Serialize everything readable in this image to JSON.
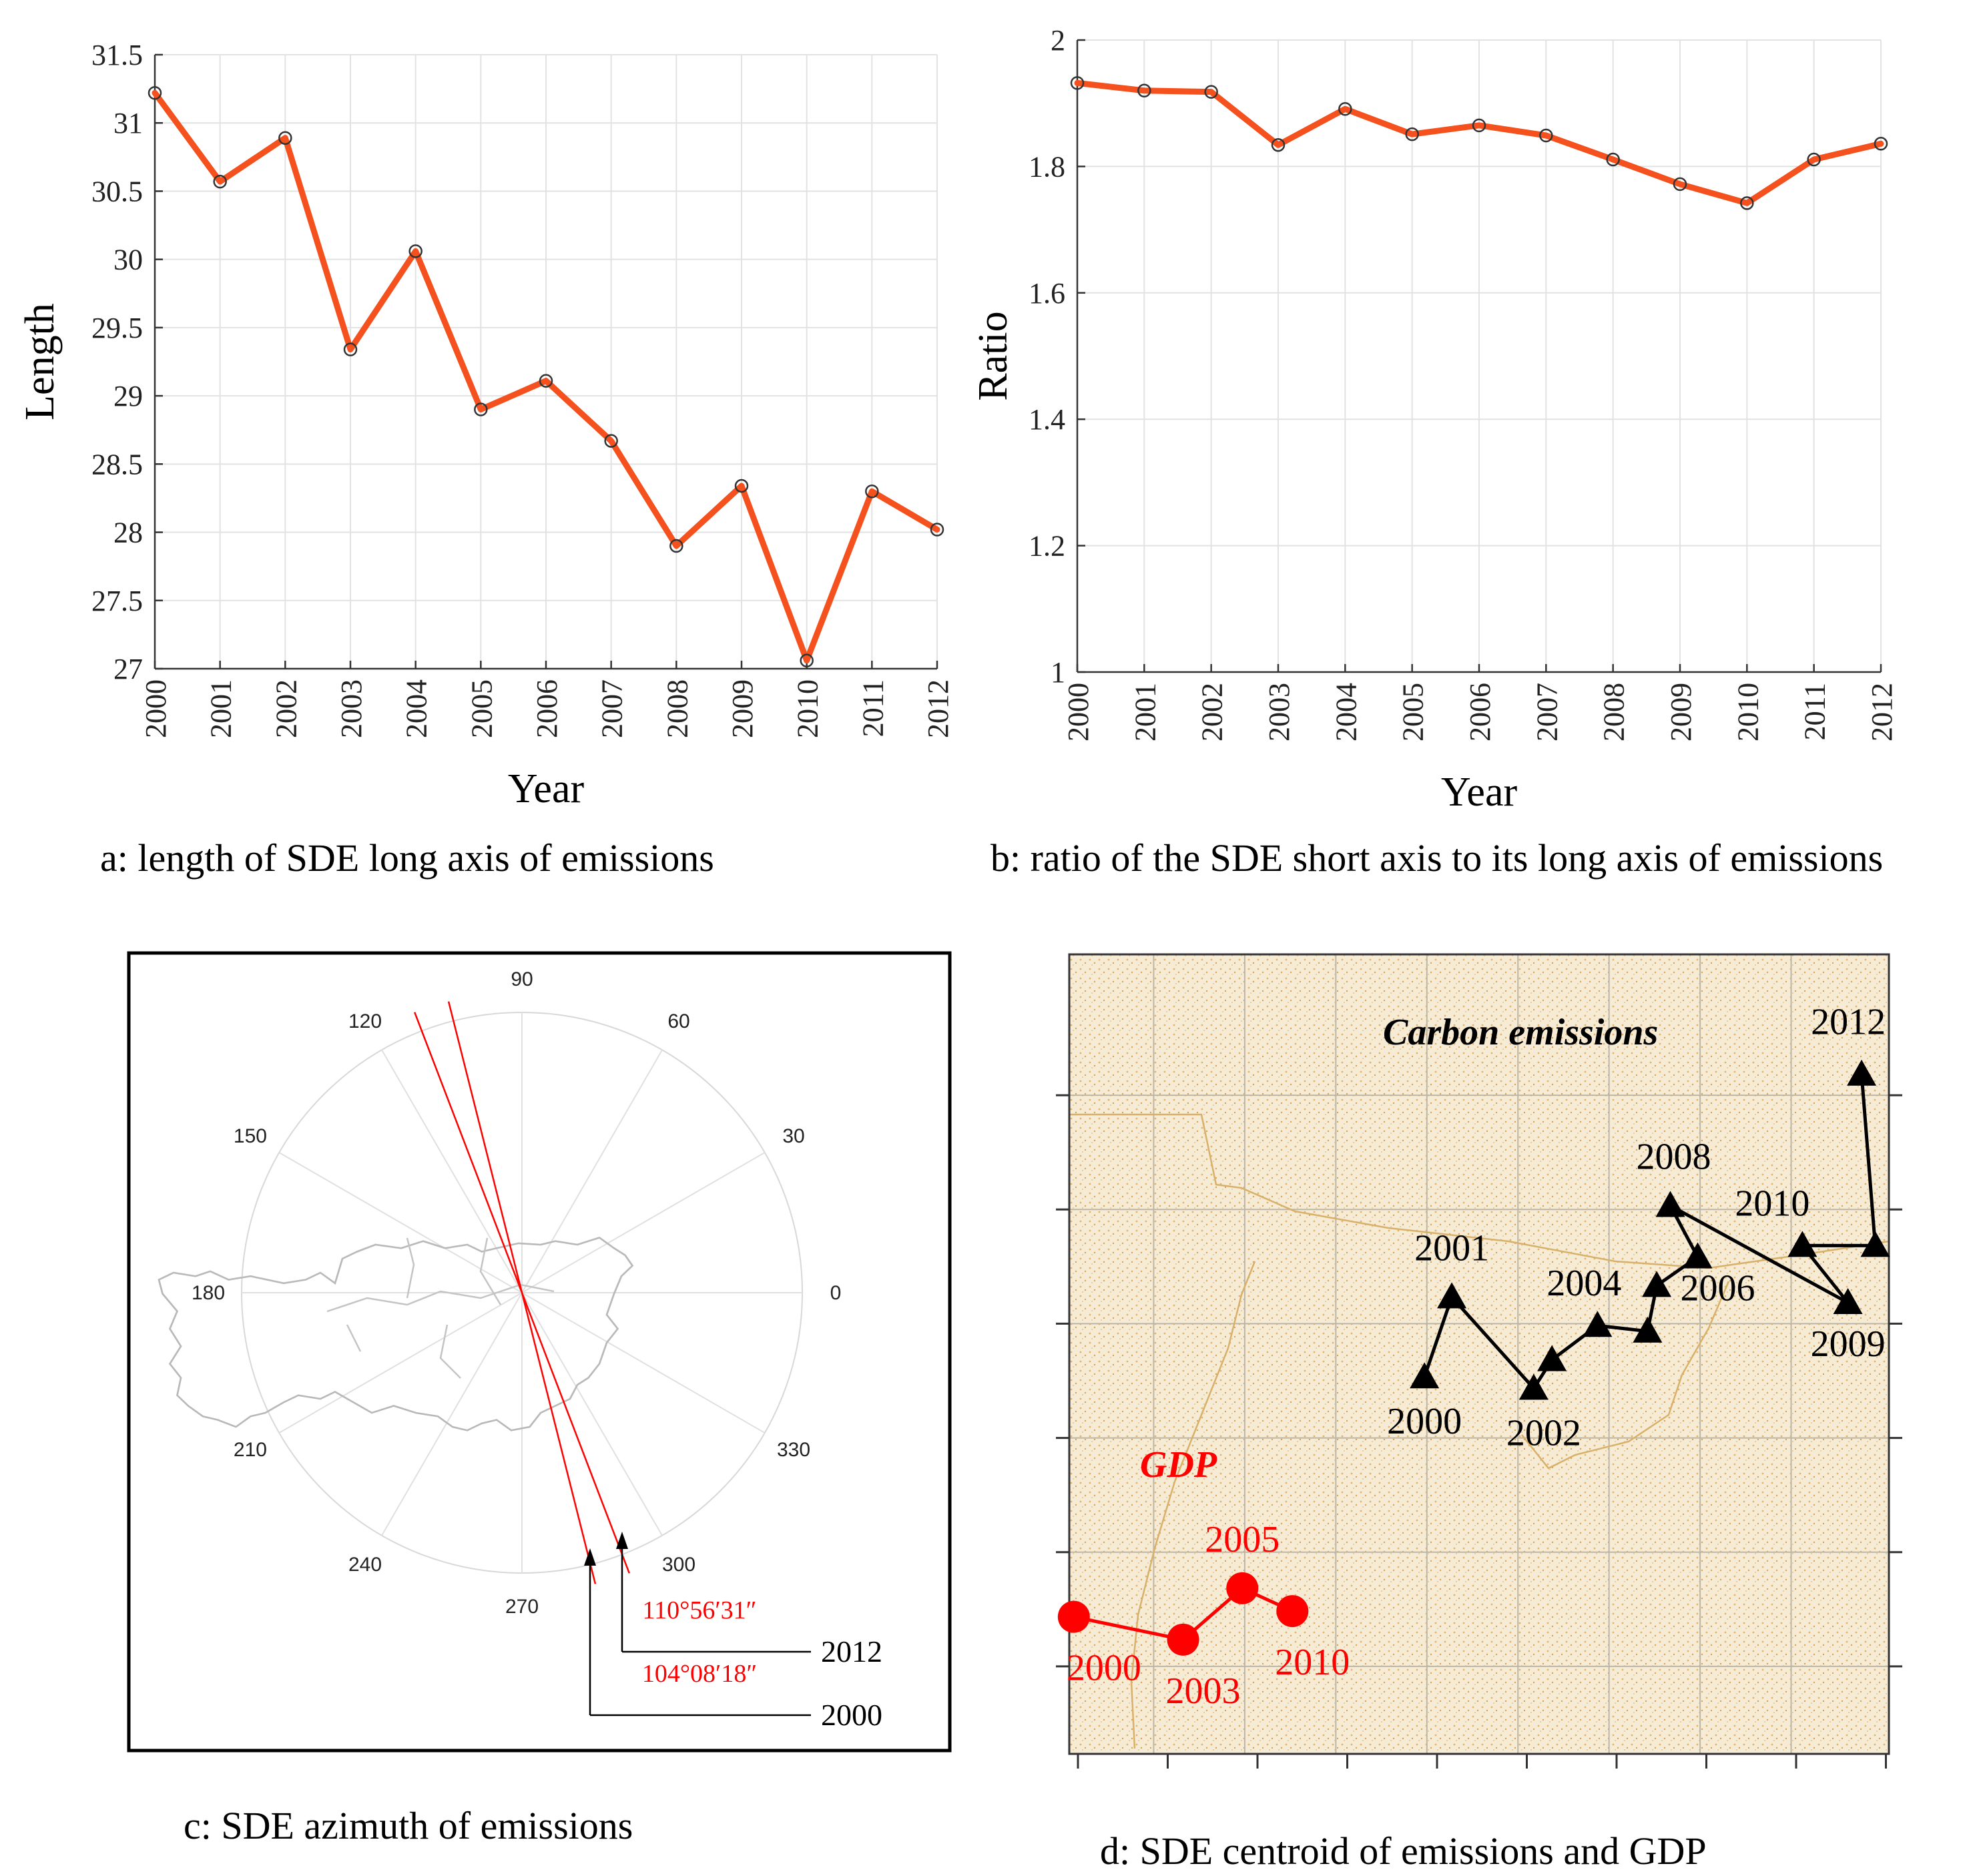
{
  "chart_data": [
    {
      "type": "line",
      "title": "",
      "caption": "a: length of SDE long axis of emissions",
      "xlabel": "Year",
      "ylabel": "Length",
      "categories": [
        "2000",
        "2001",
        "2002",
        "2003",
        "2004",
        "2005",
        "2006",
        "2007",
        "2008",
        "2009",
        "2010",
        "2011",
        "2012"
      ],
      "values": [
        31.22,
        30.57,
        30.89,
        29.34,
        30.06,
        28.9,
        29.11,
        28.67,
        27.9,
        28.34,
        27.06,
        28.3,
        28.02
      ],
      "ylim": [
        27,
        31.5
      ],
      "yticks": [
        "27",
        "27.5",
        "28",
        "28.5",
        "29",
        "29.5",
        "30",
        "30.5",
        "31",
        "31.5"
      ],
      "grid": true,
      "line_color": "#F4511E"
    },
    {
      "type": "line",
      "title": "",
      "caption": "b: ratio of the SDE short axis to its long axis of emissions",
      "xlabel": "Year",
      "ylabel": "Ratio",
      "categories": [
        "2000",
        "2001",
        "2002",
        "2003",
        "2004",
        "2005",
        "2006",
        "2007",
        "2008",
        "2009",
        "2010",
        "2011",
        "2012"
      ],
      "values": [
        1.932,
        1.92,
        1.918,
        1.834,
        1.891,
        1.851,
        1.865,
        1.849,
        1.811,
        1.772,
        1.742,
        1.811,
        1.836
      ],
      "ylim": [
        1,
        2
      ],
      "yticks": [
        "1",
        "1.2",
        "1.4",
        "1.6",
        "1.8",
        "2"
      ],
      "grid": true,
      "line_color": "#F4511E"
    },
    {
      "type": "polar",
      "caption": "c: SDE azimuth of emissions",
      "angle_labels": [
        "0",
        "30",
        "60",
        "90",
        "120",
        "150",
        "180",
        "210",
        "240",
        "270",
        "300",
        "330"
      ],
      "azimuth_lines": [
        {
          "year": "2012",
          "angle_label": "110°56′31″",
          "direction_deg": 110.94
        },
        {
          "year": "2000",
          "angle_label": "104°08′18″",
          "direction_deg": 104.14
        }
      ],
      "line_color": "#FF0000"
    },
    {
      "type": "scatter",
      "caption": "d: SDE centroid of emissions and GDP",
      "xlim": [
        0,
        9
      ],
      "ylim": [
        0,
        7
      ],
      "series": [
        {
          "name": "Carbon emissions",
          "color": "#000000",
          "marker": "triangle",
          "points": [
            {
              "label": "2000",
              "x": 3.9,
              "y": 3.3
            },
            {
              "label": "2001",
              "x": 4.2,
              "y": 4.0
            },
            {
              "label": "2002",
              "x": 5.1,
              "y": 3.2
            },
            {
              "label": "",
              "x": 5.3,
              "y": 3.45
            },
            {
              "label": "2004",
              "x": 5.8,
              "y": 3.75
            },
            {
              "label": "",
              "x": 6.35,
              "y": 3.7
            },
            {
              "label": "",
              "x": 6.45,
              "y": 4.1
            },
            {
              "label": "2006",
              "x": 6.9,
              "y": 4.35
            },
            {
              "label": "2008",
              "x": 6.6,
              "y": 4.8
            },
            {
              "label": "2009",
              "x": 8.55,
              "y": 3.95
            },
            {
              "label": "2010",
              "x": 8.05,
              "y": 4.45
            },
            {
              "label": "",
              "x": 8.85,
              "y": 4.45
            },
            {
              "label": "2012",
              "x": 8.7,
              "y": 5.95
            }
          ]
        },
        {
          "name": "GDP",
          "color": "#FF0000",
          "marker": "circle",
          "points": [
            {
              "label": "2000",
              "x": 0.05,
              "y": 1.2
            },
            {
              "label": "2003",
              "x": 1.25,
              "y": 1.0
            },
            {
              "label": "2005",
              "x": 1.9,
              "y": 1.45
            },
            {
              "label": "2010",
              "x": 2.45,
              "y": 1.25
            }
          ]
        }
      ]
    }
  ]
}
